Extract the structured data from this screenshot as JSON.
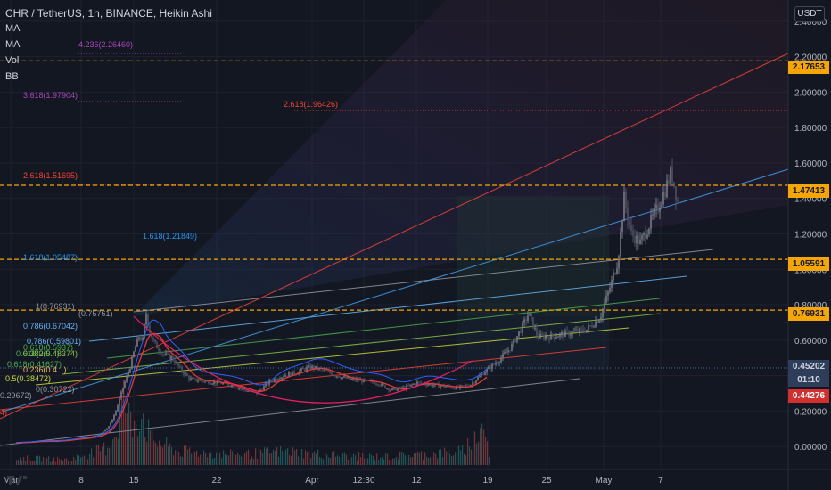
{
  "header": {
    "title": "CHR / TetherUS, 1h, BINANCE, Heikin Ashi",
    "indicators": [
      "MA",
      "MA",
      "Vol",
      "BB"
    ]
  },
  "currency_button": "USDT",
  "colors": {
    "background": "#131722",
    "grid": "#1e222d",
    "axis_text": "#b2b5be",
    "candle": "#5d606b",
    "ma": "#e53935",
    "bb": "#2962ff",
    "arc": "#e91e63",
    "hline": "#f7a600",
    "volume": "#26a69a"
  },
  "price_tags": [
    {
      "label": "2.17653",
      "bg": "#f7a600",
      "fg": "#131722"
    },
    {
      "label": "1.47413",
      "bg": "#f7a600",
      "fg": "#131722"
    },
    {
      "label": "1.05591",
      "bg": "#f7a600",
      "fg": "#131722"
    },
    {
      "label": "0.76931",
      "bg": "#f7a600",
      "fg": "#131722"
    },
    {
      "label": "0.45202",
      "bg": "#2d3d5a",
      "fg": "#d1d4dc"
    },
    {
      "label": "01:10",
      "bg": "#2d3d5a",
      "fg": "#d1d4dc"
    },
    {
      "label": "0.44276",
      "bg": "#d32f2f",
      "fg": "#ffffff"
    }
  ],
  "fib_labels": [
    {
      "text": "4.236(2.26460)",
      "color": "#ab47bc"
    },
    {
      "text": "3.618(1.97904)",
      "color": "#ab47bc"
    },
    {
      "text": "2.618(1.96426)",
      "color": "#f44336"
    },
    {
      "text": "2.618(1.51695)",
      "color": "#f44336"
    },
    {
      "text": "1.618(1.21849)",
      "color": "#2196f3"
    },
    {
      "text": "1.618(1.05487)",
      "color": "#2196f3"
    },
    {
      "text": "1(0.76931)",
      "color": "#9598a1"
    },
    {
      "text": "(0.75761)",
      "color": "#9598a1"
    },
    {
      "text": "0.786(0.67042)",
      "color": "#64b5f6"
    },
    {
      "text": "0.786(0.59801)",
      "color": "#64b5f6"
    },
    {
      "text": "0.618(0.5937)",
      "color": "#4caf50"
    },
    {
      "text": "0.618(0.5...)",
      "color": "#4caf50"
    },
    {
      "text": "0.382(0.48374)",
      "color": "#8bc34a"
    },
    {
      "text": "0.618(0.41627)",
      "color": "#4caf50"
    },
    {
      "text": "0.5(0.38472)",
      "color": "#cddc39"
    },
    {
      "text": "0.236(0.4...)",
      "color": "#ffb74d"
    },
    {
      "text": "0(0.30722)",
      "color": "#9598a1"
    },
    {
      "text": "0.29672)",
      "color": "#9598a1"
    },
    {
      "text": "4)",
      "color": "#f44336"
    }
  ],
  "chart_data": {
    "type": "candlestick",
    "pair": "CHR / TetherUS",
    "interval": "1h",
    "exchange": "BINANCE",
    "style": "Heikin Ashi",
    "x_labels": [
      "Mar",
      "8",
      "15",
      "22",
      "Apr",
      "12:30",
      "12",
      "19",
      "25",
      "May",
      "7"
    ],
    "y_ticks": [
      "2.40000",
      "2.20000",
      "2.00000",
      "1.80000",
      "1.60000",
      "1.40000",
      "1.20000",
      "1.00000",
      "0.80000",
      "0.60000",
      "0.40000",
      "0.20000",
      "0.00000"
    ],
    "ylim": [
      -0.13,
      2.52
    ],
    "grid": true,
    "hlines": [
      2.17653,
      1.47413,
      1.05591,
      0.76931
    ],
    "last_price": 0.45202,
    "countdown": "01:10",
    "bid": 0.44276,
    "close_path": [
      [
        0,
        0.02
      ],
      [
        25,
        0.03
      ],
      [
        45,
        0.03
      ],
      [
        60,
        0.04
      ],
      [
        80,
        0.05
      ],
      [
        95,
        0.07
      ],
      [
        105,
        0.12
      ],
      [
        112,
        0.2
      ],
      [
        118,
        0.3
      ],
      [
        123,
        0.38
      ],
      [
        128,
        0.45
      ],
      [
        133,
        0.55
      ],
      [
        138,
        0.62
      ],
      [
        142,
        0.6
      ],
      [
        146,
        0.75
      ],
      [
        150,
        0.65
      ],
      [
        155,
        0.58
      ],
      [
        165,
        0.52
      ],
      [
        175,
        0.5
      ],
      [
        185,
        0.43
      ],
      [
        195,
        0.38
      ],
      [
        210,
        0.37
      ],
      [
        225,
        0.36
      ],
      [
        240,
        0.35
      ],
      [
        255,
        0.32
      ],
      [
        270,
        0.3
      ],
      [
        285,
        0.37
      ],
      [
        300,
        0.4
      ],
      [
        315,
        0.42
      ],
      [
        330,
        0.45
      ],
      [
        345,
        0.43
      ],
      [
        360,
        0.4
      ],
      [
        375,
        0.38
      ],
      [
        390,
        0.37
      ],
      [
        405,
        0.36
      ],
      [
        420,
        0.32
      ],
      [
        435,
        0.33
      ],
      [
        450,
        0.36
      ],
      [
        465,
        0.35
      ],
      [
        480,
        0.34
      ],
      [
        495,
        0.33
      ],
      [
        510,
        0.35
      ],
      [
        525,
        0.42
      ],
      [
        540,
        0.48
      ],
      [
        555,
        0.56
      ],
      [
        565,
        0.65
      ],
      [
        575,
        0.75
      ],
      [
        585,
        0.62
      ],
      [
        600,
        0.62
      ],
      [
        620,
        0.64
      ],
      [
        640,
        0.66
      ],
      [
        655,
        0.73
      ],
      [
        665,
        0.88
      ],
      [
        675,
        1.05
      ],
      [
        682,
        1.4
      ],
      [
        690,
        1.2
      ],
      [
        700,
        1.15
      ],
      [
        710,
        1.25
      ],
      [
        720,
        1.35
      ],
      [
        728,
        1.45
      ],
      [
        735,
        1.55
      ],
      [
        742,
        1.38
      ]
    ],
    "volume_path": [
      [
        0,
        0.1
      ],
      [
        60,
        0.08
      ],
      [
        100,
        0.25
      ],
      [
        112,
        0.5
      ],
      [
        120,
        1.0
      ],
      [
        128,
        0.6
      ],
      [
        140,
        0.8
      ],
      [
        150,
        0.4
      ],
      [
        180,
        0.2
      ],
      [
        250,
        0.15
      ],
      [
        300,
        0.2
      ],
      [
        350,
        0.15
      ],
      [
        400,
        0.12
      ],
      [
        450,
        0.15
      ],
      [
        500,
        0.2
      ],
      [
        525,
        0.6
      ],
      [
        530,
        0.1
      ]
    ]
  }
}
